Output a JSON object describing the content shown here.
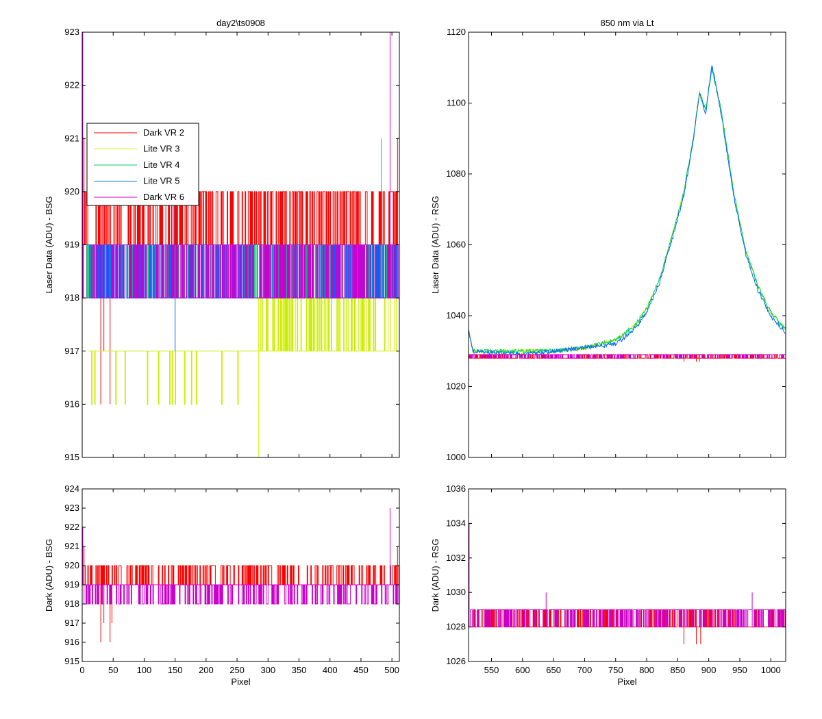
{
  "figure": {
    "background": "#ffffff"
  },
  "legend": {
    "placement": "upper-left of top-left panel",
    "entries": [
      {
        "label": "Dark VR 2",
        "color": "#ff0000"
      },
      {
        "label": "Lite VR 3",
        "color": "#ccee00"
      },
      {
        "label": "Lite VR 4",
        "color": "#00cc66"
      },
      {
        "label": "Lite VR 5",
        "color": "#0066ff"
      },
      {
        "label": "Dark VR 6",
        "color": "#cc00cc"
      }
    ]
  },
  "chart_data": [
    {
      "id": "bsg_laser",
      "type": "line",
      "title": "day2\\ts0908",
      "xlabel": "",
      "ylabel": "Laser Data (ADU) - BSG",
      "xlim": [
        0,
        512
      ],
      "ylim": [
        915,
        923
      ],
      "xticks": [
        0,
        50,
        100,
        150,
        200,
        250,
        300,
        350,
        400,
        450,
        500
      ],
      "yticks": [
        915,
        916,
        917,
        918,
        919,
        920,
        921,
        922,
        923
      ],
      "show_xtick_labels": false,
      "grid": false,
      "series": [
        {
          "name": "Dark VR 2",
          "color": "#ff0000",
          "base": 919,
          "alt": 920,
          "alt_rate": 0.35,
          "noise": [
            {
              "x": 30,
              "y": 916
            },
            {
              "x": 35,
              "y": 917
            },
            {
              "x": 45,
              "y": 916
            },
            {
              "x": 3,
              "y": 921
            },
            {
              "x": 509,
              "y": 921
            }
          ]
        },
        {
          "name": "Lite VR 3",
          "color": "#ccee00",
          "segments": [
            {
              "x0": 10,
              "x1": 285,
              "base": 917,
              "alt": 916,
              "alt_rate": 0.05
            },
            {
              "x0": 285,
              "x1": 510,
              "base": 917,
              "alt": 918,
              "alt_rate": 0.45
            }
          ],
          "noise": [
            {
              "x": 285,
              "y": 915
            }
          ]
        },
        {
          "name": "Lite VR 4",
          "color": "#00cc66",
          "base": 918,
          "alt": 919,
          "alt_rate": 0.5,
          "noise": [
            {
              "x": 483,
              "y": 921
            }
          ]
        },
        {
          "name": "Lite VR 5",
          "color": "#0066ff",
          "base": 918,
          "alt": 919,
          "alt_rate": 0.5,
          "noise": [
            {
              "x": 150,
              "y": 917
            },
            {
              "x": 148,
              "y": 920
            }
          ]
        },
        {
          "name": "Dark VR 6",
          "color": "#cc00cc",
          "base": 918,
          "alt": 919,
          "alt_rate": 0.5,
          "noise": [
            {
              "x": 497,
              "y": 923
            },
            {
              "x": 1,
              "y": 923
            }
          ]
        }
      ]
    },
    {
      "id": "rsg_laser",
      "type": "line",
      "title": "850 nm via Lt",
      "xlabel": "",
      "ylabel": "Laser Data (ADU) - RSG",
      "xlim": [
        513,
        1024
      ],
      "ylim": [
        1000,
        1120
      ],
      "xticks": [
        550,
        600,
        650,
        700,
        750,
        800,
        850,
        900,
        950,
        1000
      ],
      "yticks": [
        1000,
        1020,
        1040,
        1060,
        1080,
        1100,
        1120
      ],
      "show_xtick_labels": false,
      "grid": false,
      "series": [
        {
          "name": "Lite VR 3",
          "color": "#ccee00",
          "peak": true,
          "points": [
            [
              513,
              1036
            ],
            [
              520,
              1030
            ],
            [
              600,
              1030
            ],
            [
              650,
              1030
            ],
            [
              700,
              1031
            ],
            [
              750,
              1033
            ],
            [
              780,
              1037
            ],
            [
              800,
              1042
            ],
            [
              820,
              1050
            ],
            [
              840,
              1062
            ],
            [
              860,
              1075
            ],
            [
              875,
              1090
            ],
            [
              885,
              1103
            ],
            [
              895,
              1098
            ],
            [
              905,
              1110
            ],
            [
              920,
              1098
            ],
            [
              940,
              1075
            ],
            [
              960,
              1058
            ],
            [
              980,
              1048
            ],
            [
              1000,
              1041
            ],
            [
              1024,
              1036
            ]
          ]
        },
        {
          "name": "Lite VR 4",
          "color": "#00cc66",
          "peak": true,
          "points": [
            [
              513,
              1036
            ],
            [
              520,
              1030
            ],
            [
              600,
              1030
            ],
            [
              650,
              1030
            ],
            [
              700,
              1031
            ],
            [
              750,
              1033
            ],
            [
              780,
              1037
            ],
            [
              800,
              1042
            ],
            [
              820,
              1050
            ],
            [
              840,
              1062
            ],
            [
              860,
              1075
            ],
            [
              875,
              1090
            ],
            [
              885,
              1103
            ],
            [
              895,
              1098
            ],
            [
              905,
              1110
            ],
            [
              920,
              1098
            ],
            [
              940,
              1075
            ],
            [
              960,
              1058
            ],
            [
              980,
              1048
            ],
            [
              1000,
              1041
            ],
            [
              1024,
              1036
            ]
          ]
        },
        {
          "name": "Lite VR 5",
          "color": "#0066ff",
          "peak": true,
          "points": [
            [
              513,
              1036
            ],
            [
              520,
              1030
            ],
            [
              600,
              1029
            ],
            [
              650,
              1030
            ],
            [
              700,
              1031
            ],
            [
              750,
              1032
            ],
            [
              780,
              1036
            ],
            [
              800,
              1041
            ],
            [
              820,
              1049
            ],
            [
              840,
              1061
            ],
            [
              860,
              1074
            ],
            [
              875,
              1089
            ],
            [
              885,
              1103
            ],
            [
              895,
              1097
            ],
            [
              905,
              1111
            ],
            [
              920,
              1097
            ],
            [
              940,
              1074
            ],
            [
              960,
              1057
            ],
            [
              980,
              1047
            ],
            [
              1000,
              1040
            ],
            [
              1024,
              1035
            ]
          ]
        },
        {
          "name": "Dark VR 2",
          "color": "#ff0000",
          "base": 1028,
          "alt": 1029,
          "alt_rate": 0.3,
          "noise": [
            {
              "x": 513,
              "y": 1035
            },
            {
              "x": 860,
              "y": 1027
            },
            {
              "x": 880,
              "y": 1027
            },
            {
              "x": 885,
              "y": 1027
            }
          ]
        },
        {
          "name": "Dark VR 6",
          "color": "#cc00cc",
          "base": 1029,
          "alt": 1028,
          "alt_rate": 0.3,
          "noise": [
            {
              "x": 513,
              "y": 1035
            }
          ]
        }
      ]
    },
    {
      "id": "bsg_dark",
      "type": "line",
      "title": "",
      "xlabel": "Pixel",
      "ylabel": "Dark (ADU) - BSG",
      "xlim": [
        0,
        512
      ],
      "ylim": [
        915,
        924
      ],
      "xticks": [
        0,
        50,
        100,
        150,
        200,
        250,
        300,
        350,
        400,
        450,
        500
      ],
      "yticks": [
        915,
        916,
        917,
        918,
        919,
        920,
        921,
        922,
        923,
        924
      ],
      "show_xtick_labels": true,
      "grid": false,
      "series": [
        {
          "name": "Dark VR 2",
          "color": "#ff0000",
          "base": 919,
          "alt": 920,
          "alt_rate": 0.35,
          "noise": [
            {
              "x": 3,
              "y": 921
            },
            {
              "x": 30,
              "y": 916
            },
            {
              "x": 35,
              "y": 917
            },
            {
              "x": 45,
              "y": 916
            },
            {
              "x": 48,
              "y": 917
            },
            {
              "x": 509,
              "y": 921
            }
          ]
        },
        {
          "name": "Dark VR 6",
          "color": "#cc00cc",
          "base": 919,
          "alt": 918,
          "alt_rate": 0.3,
          "noise": [
            {
              "x": 497,
              "y": 923
            },
            {
              "x": 1,
              "y": 922
            }
          ]
        }
      ]
    },
    {
      "id": "rsg_dark",
      "type": "line",
      "title": "",
      "xlabel": "Pixel",
      "ylabel": "Dark (ADU) - RSG",
      "xlim": [
        513,
        1024
      ],
      "ylim": [
        1026,
        1036
      ],
      "xticks": [
        550,
        600,
        650,
        700,
        750,
        800,
        850,
        900,
        950,
        1000
      ],
      "yticks": [
        1026,
        1028,
        1030,
        1032,
        1034,
        1036
      ],
      "show_xtick_labels": true,
      "grid": false,
      "series": [
        {
          "name": "Dark VR 2",
          "color": "#ff0000",
          "base": 1028,
          "alt": 1029,
          "alt_rate": 0.3,
          "noise": [
            {
              "x": 513,
              "y": 1035
            },
            {
              "x": 860,
              "y": 1027
            },
            {
              "x": 880,
              "y": 1027
            },
            {
              "x": 887,
              "y": 1027
            }
          ]
        },
        {
          "name": "Dark VR 6",
          "color": "#cc00cc",
          "base": 1029,
          "alt": 1028,
          "alt_rate": 0.3,
          "noise": [
            {
              "x": 514,
              "y": 1034
            },
            {
              "x": 638,
              "y": 1030
            },
            {
              "x": 970,
              "y": 1030
            }
          ]
        }
      ]
    }
  ]
}
